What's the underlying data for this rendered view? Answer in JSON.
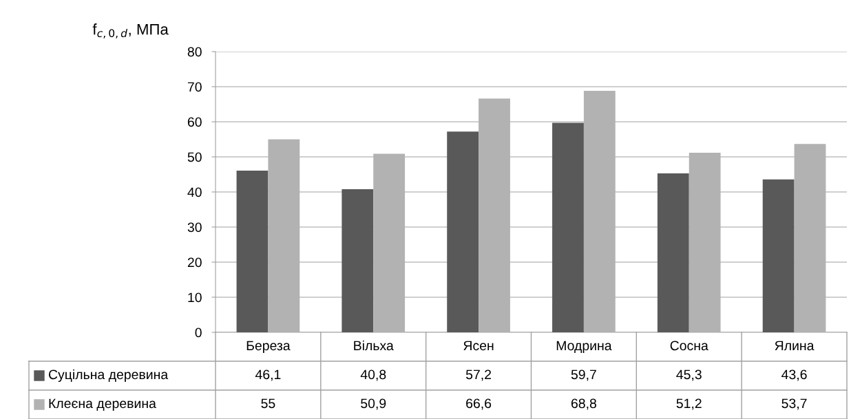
{
  "chart_data": {
    "type": "bar",
    "ylabel": "f$_{c,0,d}$, МПа",
    "categories": [
      "Береза",
      "Вільха",
      "Ясен",
      "Модрина",
      "Сосна",
      "Ялина"
    ],
    "series": [
      {
        "name": "Суцільна деревина",
        "color": "#595959",
        "values": [
          46.1,
          40.8,
          57.2,
          59.7,
          45.3,
          43.6
        ],
        "value_labels": [
          "46,1",
          "40,8",
          "57,2",
          "59,7",
          "45,3",
          "43,6"
        ]
      },
      {
        "name": "Клеєна деревина",
        "color": "#b2b2b2",
        "values": [
          55,
          50.9,
          66.6,
          68.8,
          51.2,
          53.7
        ],
        "value_labels": [
          "55",
          "50,9",
          "66,6",
          "68,8",
          "51,2",
          "53,7"
        ]
      }
    ],
    "ylim": [
      0,
      80
    ],
    "yticks": [
      0,
      10,
      20,
      30,
      40,
      50,
      60,
      70,
      80
    ],
    "grid": "y",
    "legend": "bottom"
  }
}
